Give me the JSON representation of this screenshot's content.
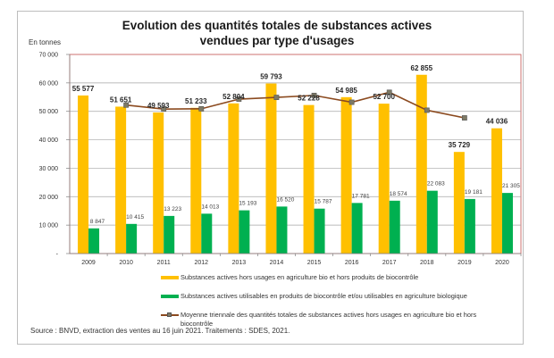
{
  "chart_data": {
    "type": "bar",
    "title": "Evolution des quantités totales de substances actives vendues par type d'usages",
    "title_lines": [
      "Evolution des quantités totales de substances actives",
      "vendues par type d'usages"
    ],
    "ylabel": "En tonnes",
    "xlabel": "",
    "ylim": [
      0,
      70000
    ],
    "yticks": [
      0,
      10000,
      20000,
      30000,
      40000,
      50000,
      60000,
      70000
    ],
    "ytick_labels": [
      "-",
      "10 000",
      "20 000",
      "30 000",
      "40 000",
      "50 000",
      "60 000",
      "70 000"
    ],
    "grid": true,
    "categories": [
      "2009",
      "2010",
      "2011",
      "2012",
      "2013",
      "2014",
      "2015",
      "2016",
      "2017",
      "2018",
      "2019",
      "2020"
    ],
    "series": [
      {
        "name": "Substances actives hors usages en agriculture bio et hors produits de biocontrôle",
        "type": "bar",
        "color": "#FFC000",
        "values": [
          55577,
          51651,
          49593,
          51233,
          52804,
          59793,
          52228,
          54985,
          52700,
          62855,
          35729,
          44036
        ],
        "labels": [
          "55 577",
          "51 651",
          "49 593",
          "51 233",
          "52 804",
          "59 793",
          "52 228",
          "54 985",
          "52 700",
          "62 855",
          "35 729",
          "44 036"
        ]
      },
      {
        "name": "Substances actives utilisables en  produits de biocontrôle et/ou utilisables en agriculture biologique",
        "type": "bar",
        "color": "#00B050",
        "values": [
          8847,
          10415,
          13223,
          14013,
          15193,
          16520,
          15787,
          17781,
          18574,
          22083,
          19181,
          21305
        ],
        "labels": [
          "8 847",
          "10 415",
          "13 223",
          "14 013",
          "15 193",
          "16 520",
          "15 787",
          "17 781",
          "18 574",
          "22 083",
          "19 181",
          "21 305"
        ]
      },
      {
        "name": "Moyenne triennale des quantités totales de substances actives hors usages en agriculture bio et hors biocontrôle",
        "type": "line",
        "color": "#8B4A1F",
        "marker_color": "#7E7A66",
        "values": [
          null,
          52200,
          50800,
          50900,
          54300,
          54900,
          55600,
          53200,
          56700,
          50400,
          47700,
          null
        ]
      }
    ],
    "legend": "bottom",
    "source": "Source : BNVD, extraction des ventes au 16 juin 2021. Traitements : SDES, 2021."
  }
}
